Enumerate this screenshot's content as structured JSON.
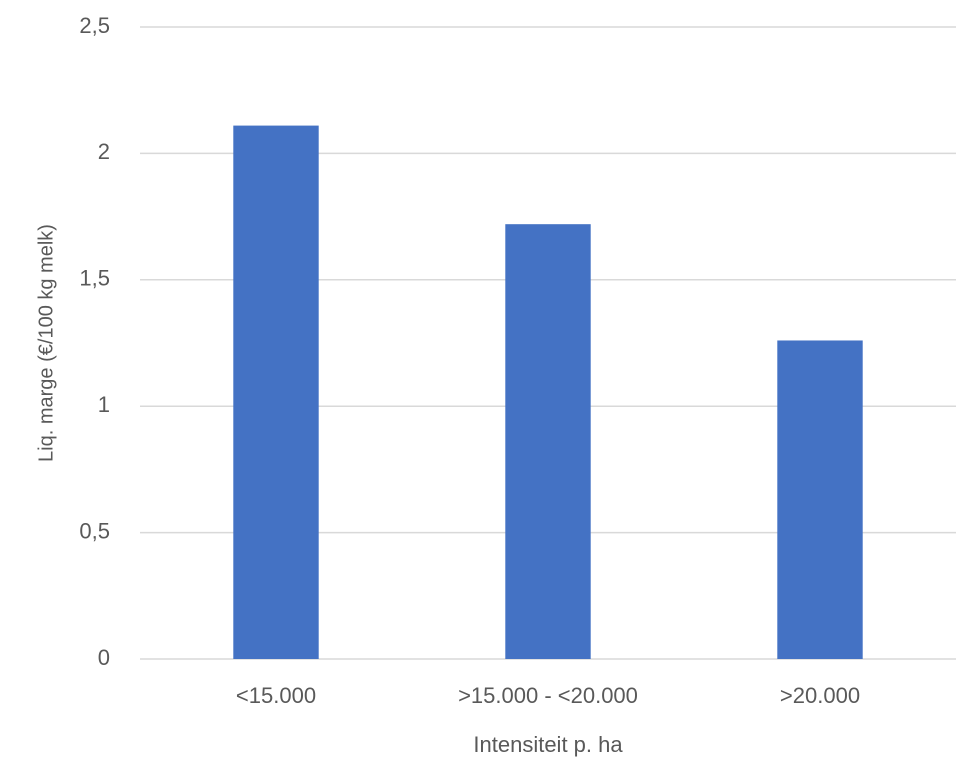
{
  "chart_data": {
    "type": "bar",
    "x_label": "Intensiteit p. ha",
    "y_label": "Liq. marge (€/100 kg melk)",
    "categories": [
      "<15.000",
      ">15.000 - <20.000",
      ">20.000"
    ],
    "values": [
      2.11,
      1.72,
      1.26
    ],
    "color": "#4472c4",
    "ylim": [
      0,
      2.5
    ],
    "yticks": [
      0,
      {
        "value": 0.5,
        "label": "0,5"
      },
      1,
      {
        "value": 1.5,
        "label": "1,5"
      },
      2,
      {
        "value": 2.5,
        "label": "2,5"
      }
    ],
    "grid": true
  }
}
